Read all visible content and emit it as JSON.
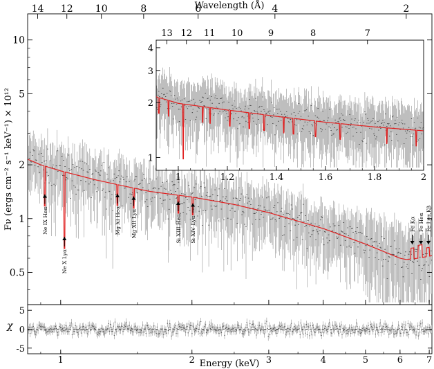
{
  "chart_data": [
    {
      "id": "main",
      "type": "line",
      "title": "",
      "xlabel": "Energy (keV)",
      "ylabel": "Fν (ergs cm⁻² s⁻¹ keV⁻¹) × 10¹²",
      "xscale": "log",
      "yscale": "log",
      "xlim": [
        0.84,
        7.1
      ],
      "ylim": [
        0.33,
        14
      ],
      "xticks": [
        1,
        2,
        3,
        4,
        5,
        6,
        7
      ],
      "xticklabels": [
        "1",
        "2",
        "3",
        "4",
        "5",
        "6",
        "7"
      ],
      "yticks": [
        0.5,
        1,
        2,
        5,
        10
      ],
      "yticklabels": [
        "0.5",
        "1",
        "2",
        "5",
        "10"
      ],
      "top_axis": {
        "label": "Wavelength (Å)",
        "ticks": [
          14,
          12,
          10,
          8,
          6,
          4,
          2
        ],
        "ticklabels": [
          "14",
          "12",
          "10",
          "8",
          "6",
          "4",
          "2"
        ]
      },
      "model_series": {
        "name": "model",
        "color": "#e02020",
        "energy_kev": [
          0.84,
          0.9,
          1.0,
          1.2,
          1.4,
          1.6,
          2.0,
          2.5,
          3.0,
          4.0,
          5.0,
          6.0,
          6.2,
          6.6,
          7.1
        ],
        "flux": [
          2.15,
          2.0,
          1.85,
          1.65,
          1.52,
          1.42,
          1.32,
          1.2,
          1.08,
          0.88,
          0.72,
          0.6,
          0.59,
          0.6,
          0.62
        ]
      },
      "data_series": {
        "name": "data",
        "color": "#555555",
        "energy_range_kev": [
          0.84,
          7.1
        ]
      },
      "line_features": [
        {
          "label": "Ne IX Heα",
          "energy_kev": 0.92,
          "flux": 1.47,
          "arrow": "up"
        },
        {
          "label": "Ne X Lyα",
          "energy_kev": 1.02,
          "flux": 0.85,
          "arrow": "up"
        },
        {
          "label": "Mg XI Heα",
          "energy_kev": 1.35,
          "flux": 1.48,
          "arrow": "up"
        },
        {
          "label": "Mg XII Lyα",
          "energy_kev": 1.47,
          "flux": 1.43,
          "arrow": "up"
        },
        {
          "label": "Si XIII Heα",
          "energy_kev": 1.86,
          "flux": 1.34,
          "arrow": "up"
        },
        {
          "label": "Si XIV Lyα",
          "energy_kev": 2.01,
          "flux": 1.31,
          "arrow": "up"
        },
        {
          "label": "Fe Kα",
          "energy_kev": 6.4,
          "flux": 0.6,
          "arrow": "down"
        },
        {
          "label": "Fe Heα",
          "energy_kev": 6.7,
          "flux": 0.6,
          "arrow": "down"
        },
        {
          "label": "Fe Lyα,Kβ",
          "energy_kev": 6.97,
          "flux": 0.6,
          "arrow": "down"
        }
      ]
    },
    {
      "id": "inset",
      "type": "line",
      "title": "",
      "xlabel": "",
      "ylabel": "",
      "xscale": "linear",
      "yscale": "log",
      "xlim": [
        0.91,
        2.0
      ],
      "ylim": [
        0.85,
        4.4
      ],
      "xticks": [
        1,
        1.2,
        1.4,
        1.6,
        1.8,
        2
      ],
      "xticklabels": [
        "1",
        "1.2",
        "1.4",
        "1.6",
        "1.8",
        "2"
      ],
      "yticks": [
        1,
        2,
        3,
        4
      ],
      "yticklabels": [
        "1",
        "2",
        "3",
        "4"
      ],
      "top_axis": {
        "label": "",
        "ticks": [
          13,
          12,
          11,
          10,
          9,
          8,
          7
        ],
        "ticklabels": [
          "13",
          "12",
          "11",
          "10",
          "9",
          "8",
          "7"
        ]
      },
      "model_series": {
        "name": "model",
        "color": "#e02020",
        "energy_kev": [
          0.91,
          1.0,
          1.2,
          1.4,
          1.6,
          1.8,
          2.0
        ],
        "flux": [
          2.15,
          1.98,
          1.82,
          1.68,
          1.56,
          1.47,
          1.4
        ]
      },
      "absorption_lines_kev": [
        0.92,
        0.96,
        1.02,
        1.1,
        1.13,
        1.21,
        1.29,
        1.35,
        1.43,
        1.47,
        1.56,
        1.66,
        1.85,
        1.97
      ]
    },
    {
      "id": "residuals",
      "type": "scatter",
      "title": "",
      "xlabel": "Energy (keV)",
      "ylabel": "χ",
      "xscale": "log",
      "xlim": [
        0.84,
        7.1
      ],
      "ylim": [
        -6.5,
        6.5
      ],
      "yticks": [
        -5,
        0,
        5
      ],
      "yticklabels": [
        "-5",
        "0",
        "5"
      ],
      "reference_line": 0,
      "spread": "residuals scattered within about ±3 around zero"
    }
  ]
}
